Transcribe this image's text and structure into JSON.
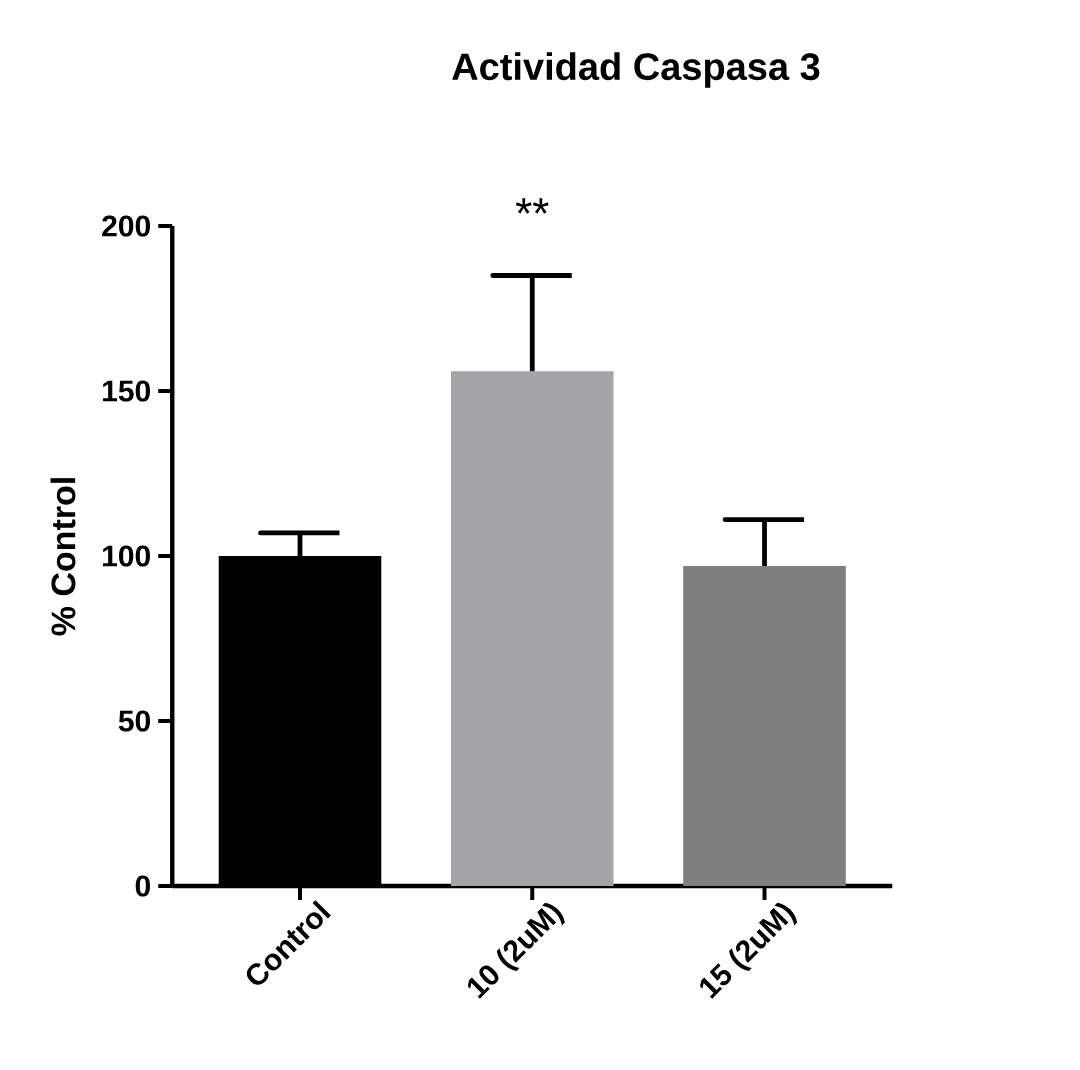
{
  "chart_data": {
    "type": "bar",
    "title": "Actividad Caspasa 3",
    "ylabel": "% Control",
    "categories": [
      "Control",
      "10 (2uM)",
      "15 (2uM)"
    ],
    "values": [
      100,
      156,
      97
    ],
    "colors": [
      "#000000",
      "#a5a5a9",
      "#7f7f7f"
    ],
    "errors": [
      [
        100,
        107
      ],
      [
        156,
        185
      ],
      [
        97,
        111
      ]
    ],
    "ylim": [
      0,
      200
    ],
    "yticks": [
      0,
      50,
      100,
      150,
      200
    ],
    "annotations": [
      {
        "text": "**",
        "x": "10 (2uM)",
        "y": 185
      }
    ]
  }
}
